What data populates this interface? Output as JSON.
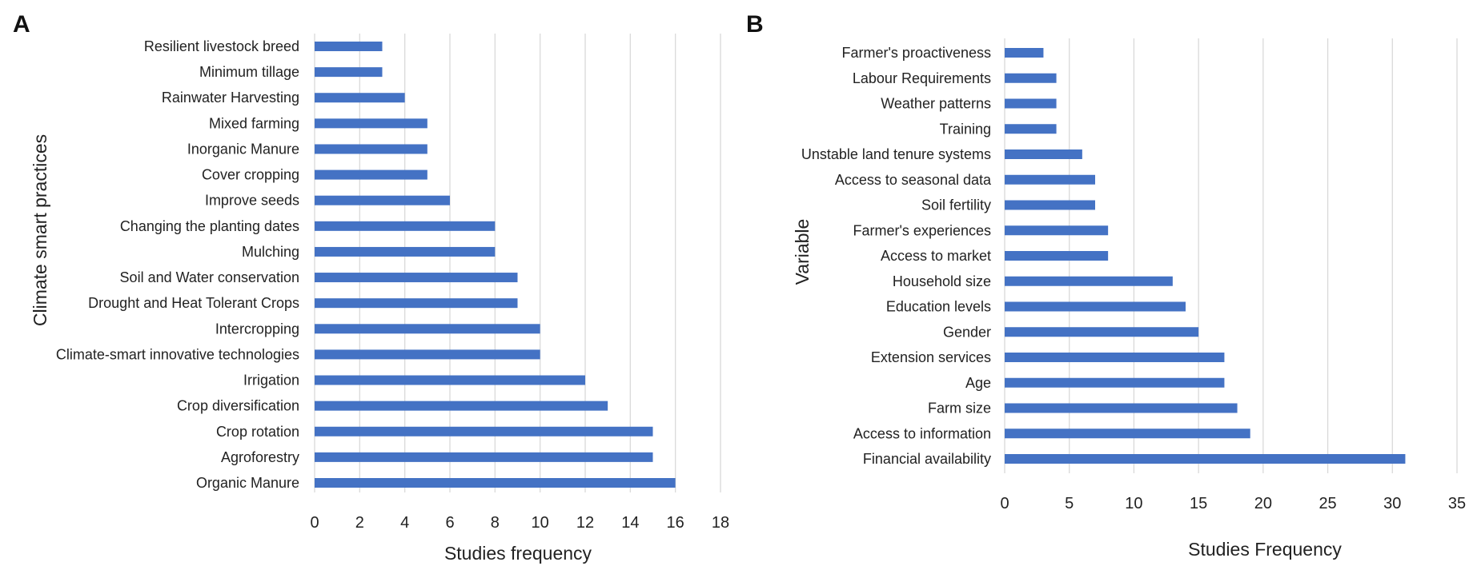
{
  "chart_data": [
    {
      "type": "bar",
      "orientation": "horizontal",
      "panel": "A",
      "categories": [
        "Resilient livestock breed",
        "Minimum tillage",
        "Rainwater Harvesting",
        "Mixed farming",
        "Inorganic Manure",
        "Cover cropping",
        "Improve seeds",
        "Changing the planting dates",
        "Mulching",
        "Soil and Water conservation",
        "Drought and Heat Tolerant Crops",
        "Intercropping",
        "Climate-smart innovative technologies",
        "Irrigation",
        "Crop diversification",
        "Crop rotation",
        "Agroforestry",
        "Organic Manure"
      ],
      "values": [
        3,
        3,
        4,
        5,
        5,
        5,
        6,
        8,
        8,
        9,
        9,
        10,
        10,
        12,
        13,
        15,
        15,
        16
      ],
      "xlabel": "Studies frequency",
      "ylabel": "Climate smart practices",
      "xlim": [
        0,
        18
      ],
      "xticks": [
        "0",
        "2",
        "4",
        "6",
        "8",
        "10",
        "12",
        "14",
        "16",
        "18"
      ],
      "color": "#4472c4",
      "grid": true
    },
    {
      "type": "bar",
      "orientation": "horizontal",
      "panel": "B",
      "categories": [
        "Farmer's proactiveness",
        "Labour Requirements",
        "Weather patterns",
        "Training",
        "Unstable land tenure systems",
        "Access to seasonal data",
        "Soil fertility",
        "Farmer's experiences",
        "Access to market",
        "Household size",
        "Education levels",
        "Gender",
        "Extension services",
        "Age",
        "Farm size",
        "Access to information",
        "Financial availability"
      ],
      "values": [
        3,
        4,
        4,
        4,
        6,
        7,
        7,
        8,
        8,
        13,
        14,
        15,
        17,
        17,
        18,
        19,
        31
      ],
      "xlabel": "Studies Frequency",
      "ylabel": "Variable",
      "xlim": [
        0,
        35
      ],
      "xticks": [
        "0",
        "5",
        "10",
        "15",
        "20",
        "25",
        "30",
        "35"
      ],
      "color": "#4472c4",
      "grid": true
    }
  ]
}
